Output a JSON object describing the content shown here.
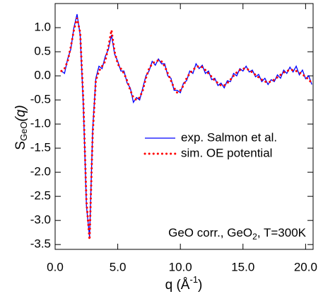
{
  "chart_data": {
    "type": "line",
    "xlabel": {
      "main": "q (Å",
      "sup": "-1",
      "tail": ")"
    },
    "ylabel": {
      "main": "S",
      "sub": "GeO",
      "tail": "(q)"
    },
    "annotation": {
      "main": "GeO corr., GeO",
      "sub": "2",
      "tail": ", T=300K"
    },
    "xlim": [
      0,
      20.6
    ],
    "ylim": [
      -3.6,
      1.5
    ],
    "xticks": [
      {
        "value": 0,
        "label": "0.0"
      },
      {
        "value": 5,
        "label": "5.0"
      },
      {
        "value": 10,
        "label": "10.0"
      },
      {
        "value": 15,
        "label": "15.0"
      },
      {
        "value": 20,
        "label": "20.0"
      }
    ],
    "yticks": [
      {
        "value": 1,
        "label": "1.0"
      },
      0.5,
      {
        "value": 0,
        "label": "0.0"
      },
      -0.5,
      {
        "value": -1,
        "label": "-1.0"
      },
      -1.5,
      {
        "value": -2,
        "label": "-2.0"
      },
      -2.5,
      {
        "value": -3,
        "label": "-3.0"
      },
      -3.5
    ],
    "legend": "right",
    "x": [
      0.5,
      0.75,
      1,
      1.25,
      1.5,
      1.75,
      2,
      2.25,
      2.5,
      2.75,
      3,
      3.25,
      3.5,
      3.75,
      4,
      4.25,
      4.5,
      4.75,
      5,
      5.25,
      5.5,
      5.75,
      6,
      6.25,
      6.5,
      6.75,
      7,
      7.25,
      7.5,
      7.75,
      8,
      8.25,
      8.5,
      8.75,
      9,
      9.25,
      9.5,
      9.75,
      10,
      10.25,
      10.5,
      10.75,
      11,
      11.25,
      11.5,
      11.75,
      12,
      12.25,
      12.5,
      12.75,
      13,
      13.25,
      13.5,
      13.75,
      14,
      14.25,
      14.5,
      14.75,
      15,
      15.25,
      15.5,
      15.75,
      16,
      16.25,
      16.5,
      16.75,
      17,
      17.25,
      17.5,
      17.75,
      18,
      18.25,
      18.5,
      18.75,
      19,
      19.25,
      19.5,
      19.75,
      20,
      20.25,
      20.5
    ],
    "series": [
      {
        "name": "exp. Salmon et al.",
        "color": "#0000ff",
        "style": "solid",
        "values": [
          0.1,
          0.05,
          0.35,
          0.55,
          1.0,
          1.28,
          0.85,
          -0.6,
          -2.7,
          -3.35,
          -1.1,
          -0.05,
          0.2,
          0.15,
          0.4,
          0.55,
          0.85,
          0.45,
          0.3,
          0.1,
          0.1,
          -0.15,
          -0.25,
          -0.55,
          -0.45,
          -0.5,
          -0.25,
          0.0,
          0.1,
          0.3,
          0.22,
          0.35,
          0.25,
          0.25,
          0.0,
          -0.05,
          -0.3,
          -0.3,
          -0.35,
          -0.15,
          -0.1,
          0.1,
          0.05,
          0.25,
          0.15,
          0.22,
          0.05,
          0.1,
          -0.08,
          -0.05,
          -0.2,
          -0.15,
          -0.25,
          -0.1,
          -0.12,
          0.05,
          0.0,
          0.15,
          0.1,
          0.2,
          0.08,
          0.12,
          -0.02,
          0.03,
          -0.12,
          -0.05,
          -0.18,
          -0.08,
          -0.12,
          0.02,
          -0.05,
          0.12,
          0.05,
          0.18,
          0.08,
          0.2,
          0.02,
          0.12,
          -0.06,
          0.0,
          -0.18
        ]
      },
      {
        "name": "sim. OE potential",
        "color": "#ff0000",
        "style": "dotted",
        "values": [
          0.1,
          0.15,
          0.3,
          0.6,
          0.95,
          1.2,
          0.9,
          -0.5,
          -2.6,
          -3.4,
          -1.2,
          -0.1,
          0.1,
          0.2,
          0.3,
          0.6,
          0.95,
          0.5,
          0.25,
          0.15,
          0.05,
          -0.1,
          -0.3,
          -0.45,
          -0.5,
          -0.45,
          -0.3,
          -0.05,
          0.15,
          0.25,
          0.3,
          0.32,
          0.3,
          0.2,
          0.05,
          -0.1,
          -0.25,
          -0.35,
          -0.3,
          -0.2,
          -0.05,
          0.05,
          0.12,
          0.18,
          0.2,
          0.18,
          0.12,
          0.05,
          -0.02,
          -0.1,
          -0.15,
          -0.2,
          -0.2,
          -0.15,
          -0.08,
          0,
          0.07,
          0.12,
          0.15,
          0.15,
          0.12,
          0.07,
          0.02,
          -0.03,
          -0.08,
          -0.12,
          -0.13,
          -0.12,
          -0.08,
          -0.03,
          0.02,
          0.07,
          0.1,
          0.12,
          0.12,
          0.1,
          0.07,
          0.03,
          -0.02,
          -0.08,
          -0.15
        ]
      }
    ]
  }
}
